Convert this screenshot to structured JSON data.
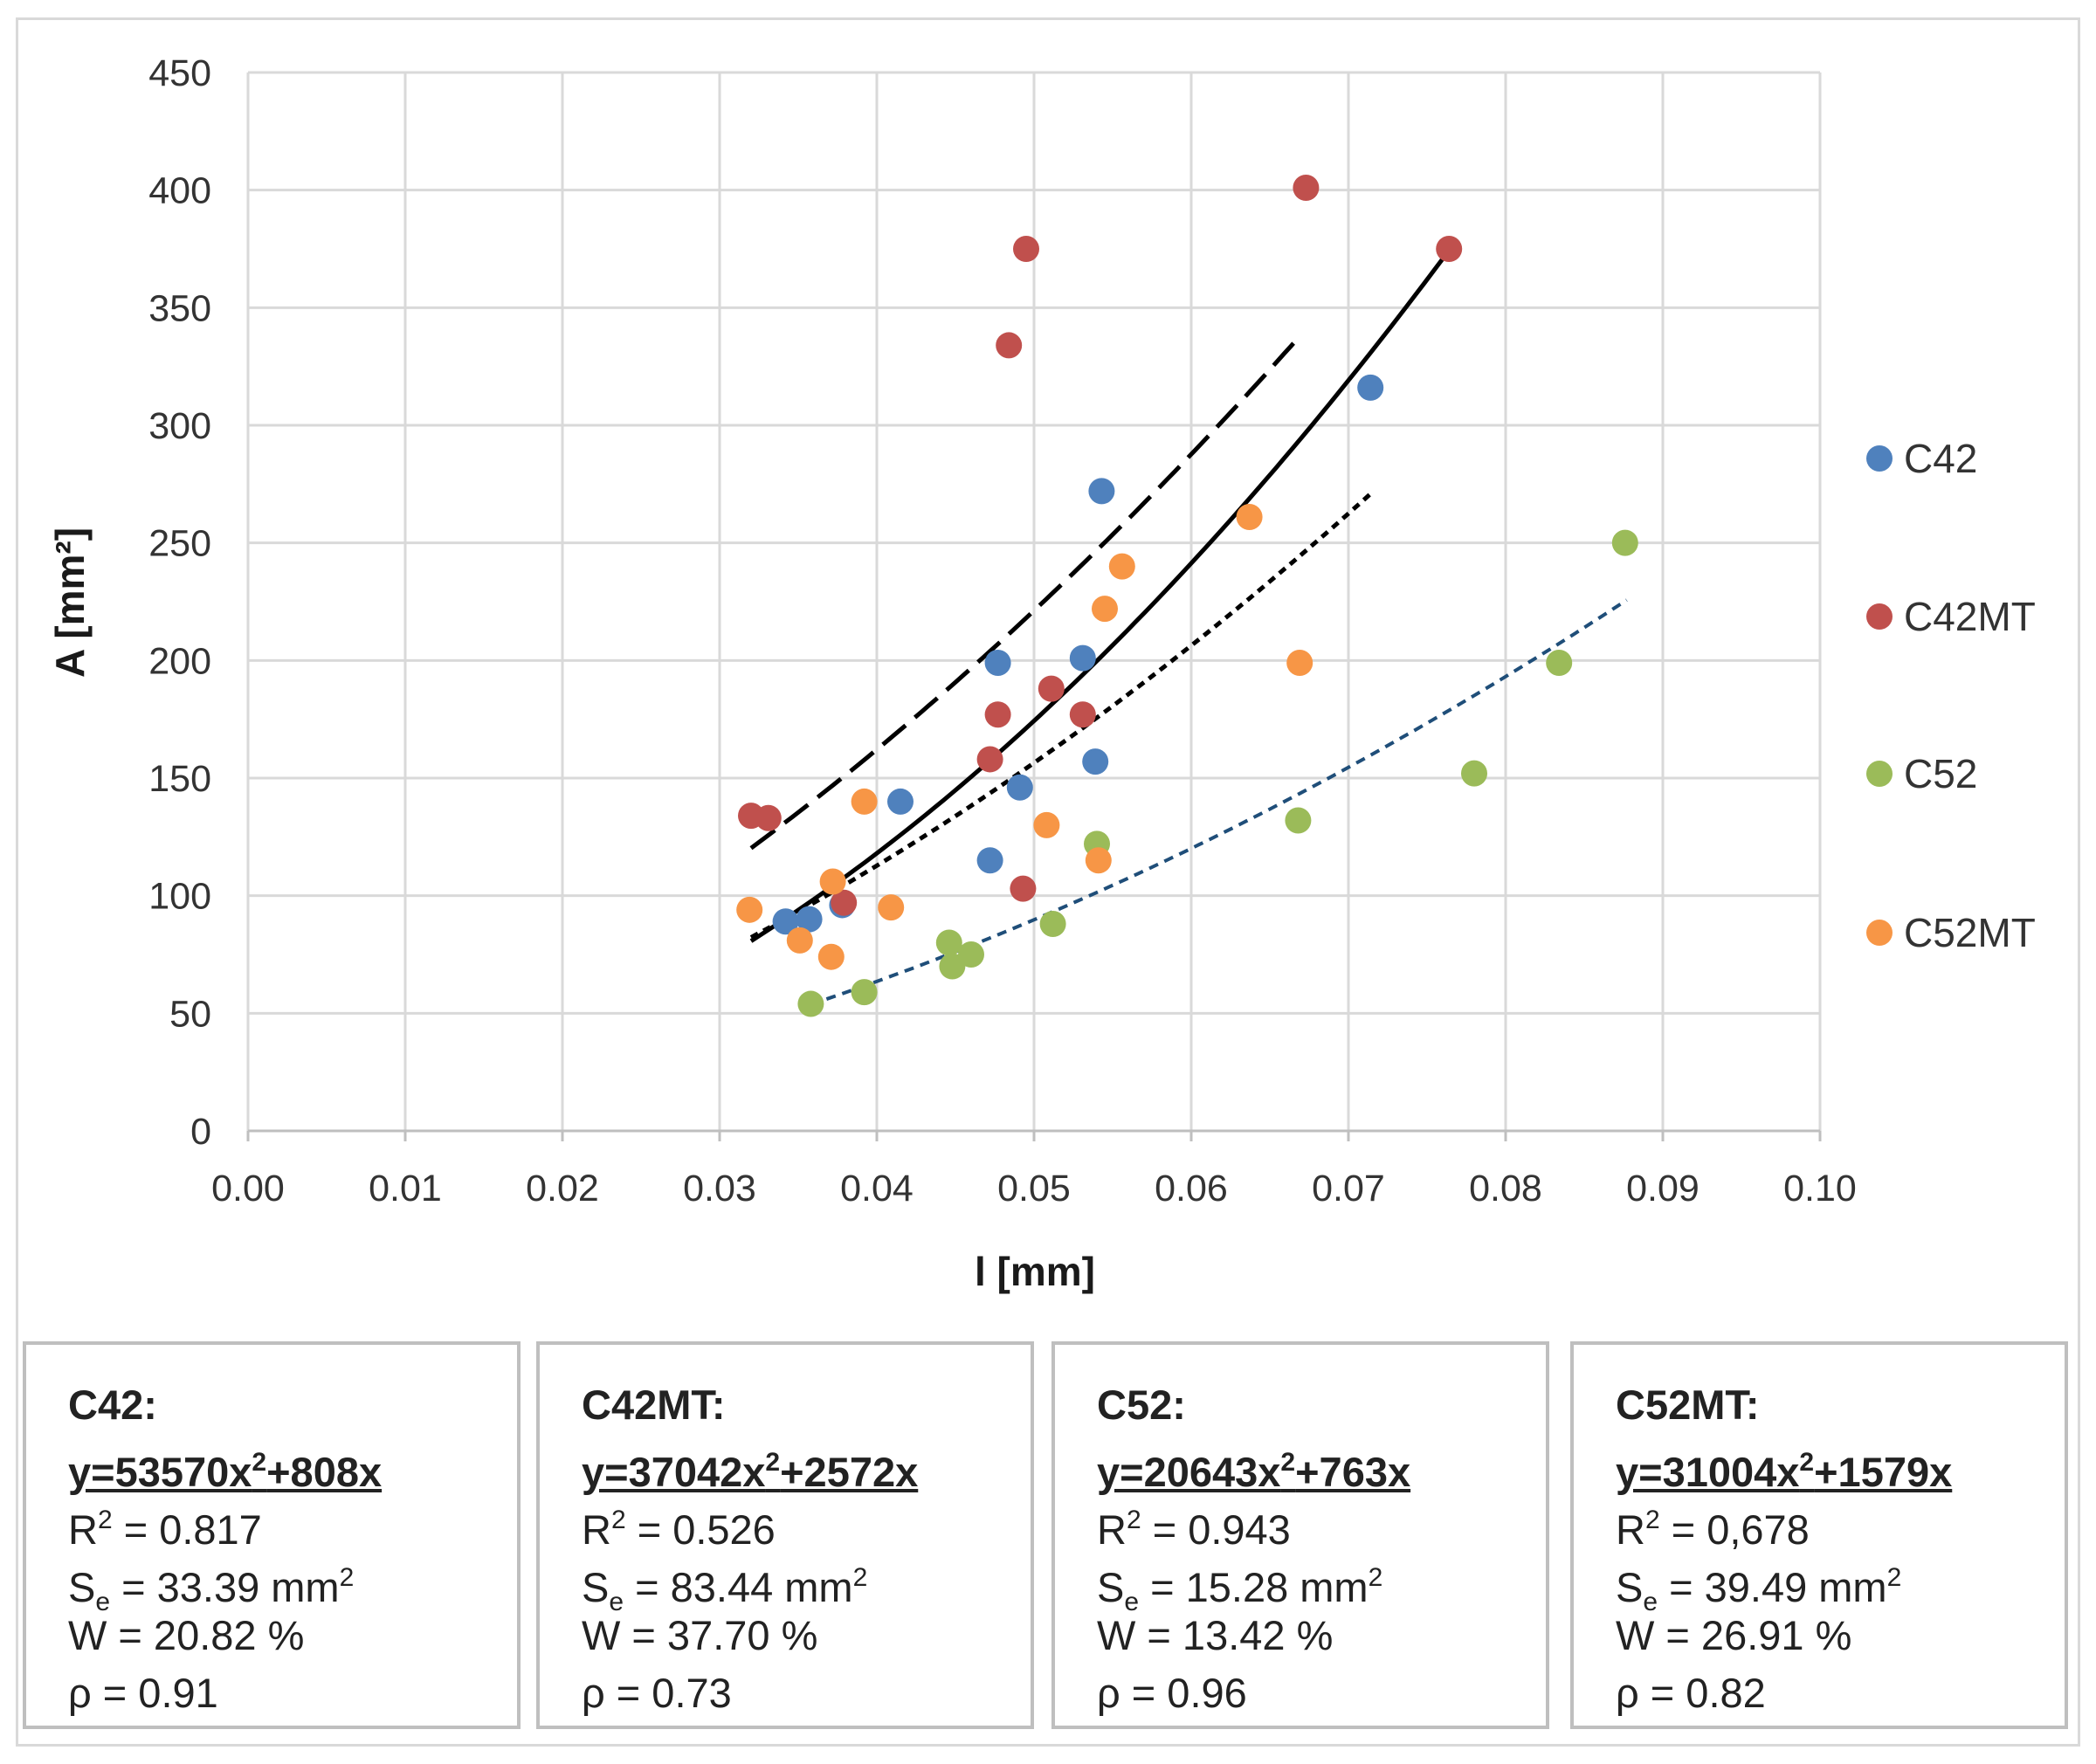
{
  "chart_data": {
    "type": "scatter",
    "xlabel": "l [mm]",
    "ylabel": "A [mm²]",
    "xlim": [
      0,
      0.1
    ],
    "ylim": [
      0,
      450
    ],
    "x_ticks": [
      "0.00",
      "0.01",
      "0.02",
      "0.03",
      "0.04",
      "0.05",
      "0.06",
      "0.07",
      "0.08",
      "0.09",
      "0.10"
    ],
    "y_ticks": [
      "0",
      "50",
      "100",
      "150",
      "200",
      "250",
      "300",
      "350",
      "400",
      "450"
    ],
    "grid": true,
    "legend_position": "right",
    "series": [
      {
        "name": "C42",
        "color": "#4f81bd",
        "points": [
          [
            0.0342,
            89
          ],
          [
            0.0357,
            90
          ],
          [
            0.0378,
            96
          ],
          [
            0.0415,
            140
          ],
          [
            0.0472,
            115
          ],
          [
            0.0477,
            199
          ],
          [
            0.0491,
            146
          ],
          [
            0.0531,
            201
          ],
          [
            0.0539,
            157
          ],
          [
            0.0543,
            272
          ],
          [
            0.0714,
            316
          ]
        ],
        "fit": {
          "a": 53570,
          "b": 808,
          "from": 0.032,
          "to": 0.0765,
          "style": "solid"
        }
      },
      {
        "name": "C42MT",
        "color": "#c0504d",
        "points": [
          [
            0.032,
            134
          ],
          [
            0.0331,
            133
          ],
          [
            0.0379,
            97
          ],
          [
            0.0472,
            158
          ],
          [
            0.0477,
            177
          ],
          [
            0.0484,
            334
          ],
          [
            0.0493,
            103
          ],
          [
            0.0495,
            375
          ],
          [
            0.0511,
            188
          ],
          [
            0.0531,
            177
          ],
          [
            0.0673,
            401
          ],
          [
            0.0764,
            375
          ]
        ],
        "fit": {
          "a": 37042,
          "b": 2572,
          "from": 0.032,
          "to": 0.0668,
          "style": "dash"
        }
      },
      {
        "name": "C52",
        "color": "#9bbb59",
        "points": [
          [
            0.0358,
            54
          ],
          [
            0.0392,
            59
          ],
          [
            0.0446,
            80
          ],
          [
            0.0448,
            70
          ],
          [
            0.046,
            75
          ],
          [
            0.0512,
            88
          ],
          [
            0.054,
            122
          ],
          [
            0.0668,
            132
          ],
          [
            0.078,
            152
          ],
          [
            0.0834,
            199
          ],
          [
            0.0876,
            250
          ]
        ],
        "fit": {
          "a": 20643,
          "b": 763,
          "from": 0.0358,
          "to": 0.0877,
          "style": "bluedot"
        }
      },
      {
        "name": "C52MT",
        "color": "#f79646",
        "points": [
          [
            0.0319,
            94
          ],
          [
            0.0351,
            81
          ],
          [
            0.0371,
            74
          ],
          [
            0.0372,
            106
          ],
          [
            0.0392,
            140
          ],
          [
            0.0409,
            95
          ],
          [
            0.0508,
            130
          ],
          [
            0.0541,
            115
          ],
          [
            0.0545,
            222
          ],
          [
            0.0556,
            240
          ],
          [
            0.0637,
            261
          ],
          [
            0.0669,
            199
          ]
        ],
        "fit": {
          "a": 31004,
          "b": 1579,
          "from": 0.032,
          "to": 0.0715,
          "style": "dot"
        }
      }
    ]
  },
  "stats": [
    {
      "title": "C42:",
      "eq": "y=53570x²+808x",
      "r2": "0.817",
      "se": "33.39",
      "w": "20.82",
      "rho": "0.91",
      "r2_sep": " = "
    },
    {
      "title": "C42MT:",
      "eq": "y=37042x²+2572x",
      "r2": "0.526",
      "se": "83.44",
      "w": "37.70",
      "rho": "0.73",
      "r2_sep": " = "
    },
    {
      "title": "C52:",
      "eq": "y=20643x²+763x",
      "r2": "0.943",
      "se": "15.28",
      "w": "13.42",
      "rho": "0.96",
      "r2_sep": " = "
    },
    {
      "title": "C52MT:",
      "eq": "y=31004x²+1579x",
      "r2": "0,678",
      "se": "39.49",
      "w": "26.91",
      "rho": "0.82",
      "r2_sep": " = "
    }
  ],
  "labels": {
    "r2": "R",
    "se": "S",
    "se_sub": "e",
    "w": "W = ",
    "rho": "ρ = ",
    "unit_mm2": "mm",
    "pct": " %"
  }
}
